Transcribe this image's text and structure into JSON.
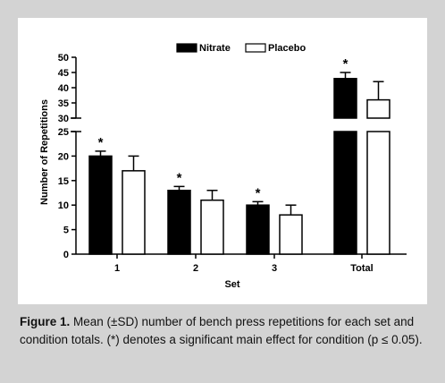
{
  "chart_data": {
    "type": "bar",
    "xlabel": "Set",
    "ylabel": "Number of Repetitions",
    "categories": [
      "1",
      "2",
      "3",
      "Total"
    ],
    "series": [
      {
        "name": "Nitrate",
        "color": "#000000",
        "values": [
          20,
          13,
          10,
          43
        ],
        "errors": [
          1,
          0.8,
          0.7,
          2
        ]
      },
      {
        "name": "Placebo",
        "color": "#ffffff",
        "values": [
          17,
          11,
          8,
          36
        ],
        "errors": [
          3,
          2,
          2,
          6
        ]
      }
    ],
    "significance_marker": "*",
    "significant_series": "Nitrate",
    "y_axis_lower": {
      "range": [
        0,
        25
      ],
      "ticks": [
        "0",
        "5",
        "10",
        "15",
        "20",
        "25"
      ]
    },
    "y_axis_upper": {
      "range": [
        30,
        50
      ],
      "ticks": [
        "30",
        "35",
        "40",
        "45",
        "50"
      ]
    },
    "axis_break": true,
    "legend_position": "top"
  },
  "caption": {
    "label": "Figure 1.",
    "text": "Mean (±SD) number of bench press repetitions for each set and condition totals. (*) denotes a significant main effect for condition (p ≤ 0.05)."
  }
}
